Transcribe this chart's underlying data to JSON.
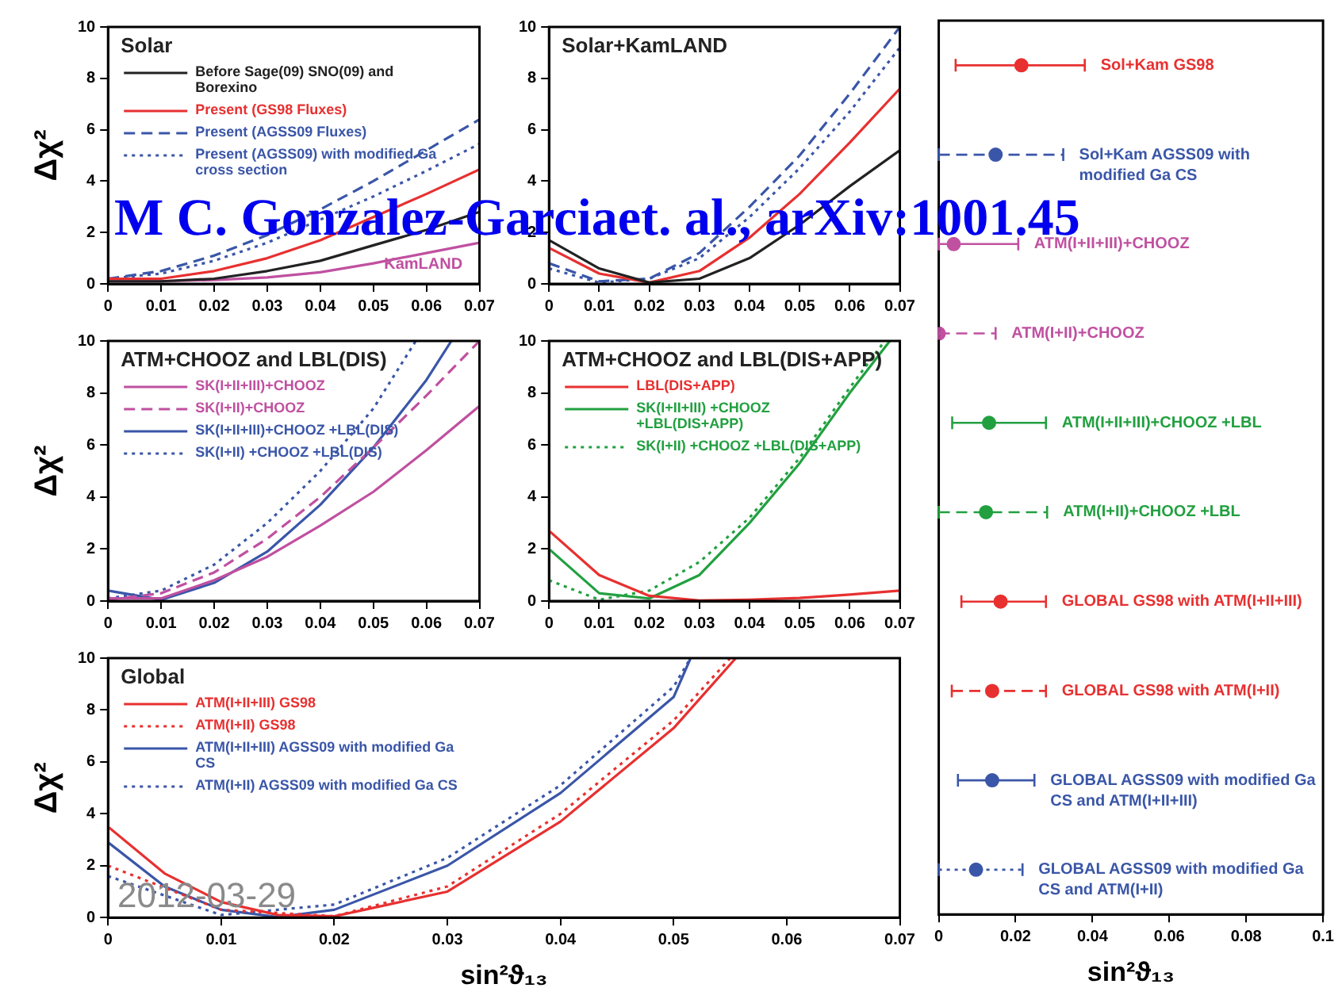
{
  "chart_data": [
    {
      "type": "line",
      "title": "Solar",
      "ylabel": "Δχ²",
      "x": [
        0,
        0.01,
        0.02,
        0.03,
        0.04,
        0.05,
        0.06,
        0.07
      ],
      "xlim": [
        0,
        0.07
      ],
      "xticks": [
        0,
        0.01,
        0.02,
        0.03,
        0.04,
        0.05,
        0.06,
        0.07
      ],
      "ylim": [
        0,
        10
      ],
      "yticks": [
        0,
        2,
        4,
        6,
        8,
        10
      ],
      "grid": false,
      "legend": "top left",
      "marker": "none",
      "annotations": [
        {
          "text": "KamLAND",
          "x": 0.058,
          "y": 1.3
        },
        "M C. Gonzalez-Garciaet. al., arXiv:1001.45"
      ],
      "series": [
        {
          "name": "Before Sage(09) SNO(09) and Borexino",
          "color": "#222222",
          "line_style": "solid",
          "values": [
            0.1,
            0.1,
            0.2,
            0.5,
            0.9,
            1.5,
            2.1,
            2.8
          ]
        },
        {
          "name": "Present (GS98 Fluxes)",
          "color": "#e83030",
          "line_style": "solid",
          "values": [
            0.2,
            0.2,
            0.5,
            1.0,
            1.7,
            2.6,
            3.5,
            4.45
          ]
        },
        {
          "name": "Present (AGSS09 Fluxes)",
          "color": "#3a56a8",
          "line_style": "dashed",
          "values": [
            0.2,
            0.5,
            1.1,
            1.9,
            2.9,
            4.0,
            5.2,
            6.4
          ]
        },
        {
          "name": "Present (AGSS09) with modified Ga cross section",
          "color": "#3a56a8",
          "line_style": "dotted",
          "values": [
            0.2,
            0.4,
            0.9,
            1.6,
            2.5,
            3.4,
            4.4,
            5.45
          ]
        },
        {
          "color": "#c050a0",
          "line_style": "solid",
          "values": [
            0.1,
            0.1,
            0.15,
            0.25,
            0.45,
            0.8,
            1.2,
            1.6
          ]
        }
      ]
    },
    {
      "type": "line",
      "title": "Solar+KamLAND",
      "x": [
        0,
        0.01,
        0.02,
        0.03,
        0.04,
        0.05,
        0.06,
        0.07
      ],
      "xlim": [
        0,
        0.07
      ],
      "xticks": [
        0,
        0.01,
        0.02,
        0.03,
        0.04,
        0.05,
        0.06,
        0.07
      ],
      "ylim": [
        0,
        10
      ],
      "yticks": [
        0,
        2,
        4,
        6,
        8,
        10
      ],
      "grid": false,
      "marker": "none",
      "series": [
        {
          "color": "#222222",
          "line_style": "solid",
          "values": [
            1.7,
            0.6,
            0.05,
            0.2,
            1.0,
            2.3,
            3.8,
            5.2
          ]
        },
        {
          "color": "#e83030",
          "line_style": "solid",
          "values": [
            1.4,
            0.4,
            0.05,
            0.5,
            1.8,
            3.5,
            5.5,
            7.6
          ]
        },
        {
          "color": "#3a56a8",
          "line_style": "dashed",
          "values": [
            0.8,
            0.1,
            0.2,
            1.2,
            3.0,
            5.0,
            7.4,
            10
          ]
        },
        {
          "color": "#3a56a8",
          "line_style": "dotted",
          "values": [
            0.6,
            0.05,
            0.2,
            1.0,
            2.6,
            4.5,
            6.7,
            9.2
          ]
        }
      ]
    },
    {
      "type": "line",
      "title": "ATM+CHOOZ and LBL(DIS)",
      "ylabel": "Δχ²",
      "x": [
        0,
        0.01,
        0.02,
        0.03,
        0.04,
        0.05,
        0.06,
        0.07
      ],
      "xlim": [
        0,
        0.07
      ],
      "xticks": [
        0,
        0.01,
        0.02,
        0.03,
        0.04,
        0.05,
        0.06,
        0.07
      ],
      "ylim": [
        0,
        10
      ],
      "yticks": [
        0,
        2,
        4,
        6,
        8,
        10
      ],
      "grid": false,
      "legend": "top left",
      "marker": "none",
      "series": [
        {
          "name": "SK(I+II+III)+CHOOZ",
          "color": "#c050a0",
          "line_style": "solid",
          "values": [
            0.1,
            0.1,
            0.8,
            1.7,
            2.9,
            4.2,
            5.8,
            7.5
          ]
        },
        {
          "name": "SK(I+II)+CHOOZ",
          "color": "#c050a0",
          "line_style": "dashed",
          "values": [
            0.05,
            0.3,
            1.1,
            2.4,
            4.0,
            5.9,
            7.9,
            10
          ]
        },
        {
          "name": "SK(I+II+III)+CHOOZ +LBL(DIS)",
          "color": "#3a56a8",
          "line_style": "solid",
          "x": [
            0,
            0.01,
            0.02,
            0.03,
            0.04,
            0.05,
            0.06,
            0.0647
          ],
          "values": [
            0.4,
            0.05,
            0.7,
            1.9,
            3.7,
            5.9,
            8.5,
            10
          ]
        },
        {
          "name": "SK(I+II) +CHOOZ +LBL(DIS)",
          "color": "#3a56a8",
          "line_style": "dotted",
          "x": [
            0,
            0.01,
            0.02,
            0.03,
            0.04,
            0.05,
            0.058
          ],
          "values": [
            0.1,
            0.4,
            1.4,
            3.0,
            5.0,
            7.4,
            10
          ]
        }
      ]
    },
    {
      "type": "line",
      "title": "ATM+CHOOZ and LBL(DIS+APP)",
      "x": [
        0,
        0.01,
        0.02,
        0.03,
        0.04,
        0.05,
        0.06,
        0.07
      ],
      "xlim": [
        0,
        0.07
      ],
      "xticks": [
        0,
        0.01,
        0.02,
        0.03,
        0.04,
        0.05,
        0.06,
        0.07
      ],
      "ylim": [
        0,
        10
      ],
      "yticks": [
        0,
        2,
        4,
        6,
        8,
        10
      ],
      "grid": false,
      "legend": "top left",
      "marker": "none",
      "series": [
        {
          "name": "LBL(DIS+APP)",
          "color": "#e83030",
          "line_style": "solid",
          "values": [
            2.7,
            1.0,
            0.2,
            0.02,
            0.05,
            0.12,
            0.25,
            0.4
          ]
        },
        {
          "name": "SK(I+II+III) +CHOOZ +LBL(DIS+APP)",
          "color": "#22a040",
          "line_style": "solid",
          "x": [
            0,
            0.01,
            0.02,
            0.03,
            0.04,
            0.05,
            0.06,
            0.068
          ],
          "values": [
            2.0,
            0.3,
            0.1,
            1.0,
            3.0,
            5.3,
            8.0,
            10
          ]
        },
        {
          "name": "SK(I+II) +CHOOZ +LBL(DIS+APP)",
          "color": "#22a040",
          "line_style": "dotted",
          "x": [
            0,
            0.01,
            0.02,
            0.03,
            0.04,
            0.05,
            0.06,
            0.067
          ],
          "values": [
            0.8,
            0.05,
            0.4,
            1.5,
            3.2,
            5.5,
            8.2,
            10
          ]
        }
      ]
    },
    {
      "type": "line",
      "title": "Global",
      "xlabel": "sin²ϑ₁₃",
      "ylabel": "Δχ²",
      "xlim": [
        0,
        0.07
      ],
      "xticks": [
        0,
        0.01,
        0.02,
        0.03,
        0.04,
        0.05,
        0.06,
        0.07
      ],
      "ylim": [
        0,
        10
      ],
      "yticks": [
        0,
        2,
        4,
        6,
        8,
        10
      ],
      "grid": false,
      "legend": "top left",
      "marker": "none",
      "annotations": [
        "2012-03-29"
      ],
      "series": [
        {
          "name": "ATM(I+II+III) GS98",
          "color": "#e83030",
          "line_style": "solid",
          "x": [
            0,
            0.005,
            0.01,
            0.015,
            0.02,
            0.03,
            0.04,
            0.05,
            0.0555
          ],
          "values": [
            3.5,
            1.7,
            0.6,
            0.1,
            0.05,
            1.0,
            3.7,
            7.3,
            10
          ]
        },
        {
          "name": "ATM(I+II) GS98",
          "color": "#e83030",
          "line_style": "dotted",
          "x": [
            0,
            0.01,
            0.02,
            0.03,
            0.04,
            0.05,
            0.055
          ],
          "values": [
            2.0,
            0.3,
            0.05,
            1.2,
            4.0,
            7.6,
            10
          ]
        },
        {
          "name": "ATM(I+II+III) AGSS09 with modified Ga CS",
          "color": "#3a56a8",
          "line_style": "solid",
          "x": [
            0,
            0.005,
            0.01,
            0.015,
            0.02,
            0.03,
            0.04,
            0.05,
            0.0515
          ],
          "values": [
            2.9,
            1.2,
            0.3,
            0.02,
            0.3,
            2.0,
            4.8,
            8.5,
            10
          ]
        },
        {
          "name": "ATM(I+II) AGSS09 with modified Ga CS",
          "color": "#3a56a8",
          "line_style": "dotted",
          "x": [
            0,
            0.01,
            0.02,
            0.03,
            0.04,
            0.05,
            0.0515
          ],
          "values": [
            1.6,
            0.1,
            0.5,
            2.3,
            5.1,
            8.9,
            10
          ]
        }
      ]
    },
    {
      "type": "scatter",
      "orientation": "horizontal",
      "xlabel": "sin²ϑ₁₃",
      "categories": [
        "Sol+Kam GS98",
        "Sol+Kam AGSS09 with modified Ga CS",
        "ATM(I+II+III)+CHOOZ",
        "ATM(I+II)+CHOOZ",
        "ATM(I+II+III)+CHOOZ +LBL",
        "ATM(I+II)+CHOOZ +LBL",
        "GLOBAL GS98 with ATM(I+II+III)",
        "GLOBAL GS98 with ATM(I+II)",
        "GLOBAL AGSS09 with modified Ga CS and ATM(I+II+III)",
        "GLOBAL AGSS09 with modified Ga CS and ATM(I+II)"
      ],
      "xlim": [
        0,
        0.1
      ],
      "xticks": [
        0,
        0.02,
        0.04,
        0.06,
        0.08,
        0.1
      ],
      "tick_labels": "x",
      "grid": false,
      "marker": "circle",
      "series": [
        {
          "line_style": "solid",
          "values": [
            0.0215,
            null,
            0.0039,
            null,
            0.0131,
            null,
            0.0161,
            null,
            0.0139,
            null
          ],
          "errors": [
            [
              0.0044,
              0.038
            ],
            null,
            [
              0,
              0.0207
            ],
            null,
            [
              0.0035,
              0.0279
            ],
            null,
            [
              0.0059,
              0.0279
            ],
            null,
            [
              0.005,
              0.0249
            ],
            null
          ],
          "colors": [
            "#e83030",
            null,
            "#c050a0",
            null,
            "#22a040",
            null,
            "#e83030",
            null,
            "#3a56a8",
            null
          ]
        },
        {
          "line_style": "dashed",
          "values": [
            null,
            0.0148,
            null,
            0,
            null,
            0.0123,
            null,
            0.0139,
            null,
            null
          ],
          "errors": [
            null,
            [
              0,
              0.0324
            ],
            null,
            [
              0,
              0.0148
            ],
            null,
            [
              0,
              0.0282
            ],
            null,
            [
              0.0034,
              0.0279
            ],
            null,
            null
          ],
          "colors": [
            null,
            "#3a56a8",
            null,
            "#c050a0",
            null,
            "#22a040",
            null,
            "#e83030",
            null,
            null
          ]
        },
        {
          "line_style": "dotted",
          "values": [
            null,
            null,
            null,
            null,
            null,
            null,
            null,
            null,
            null,
            0.0097
          ],
          "errors": [
            null,
            null,
            null,
            null,
            null,
            null,
            null,
            null,
            null,
            [
              0,
              0.0218
            ]
          ],
          "colors": [
            null,
            null,
            null,
            null,
            null,
            null,
            null,
            null,
            null,
            "#3a56a8"
          ]
        }
      ]
    }
  ]
}
